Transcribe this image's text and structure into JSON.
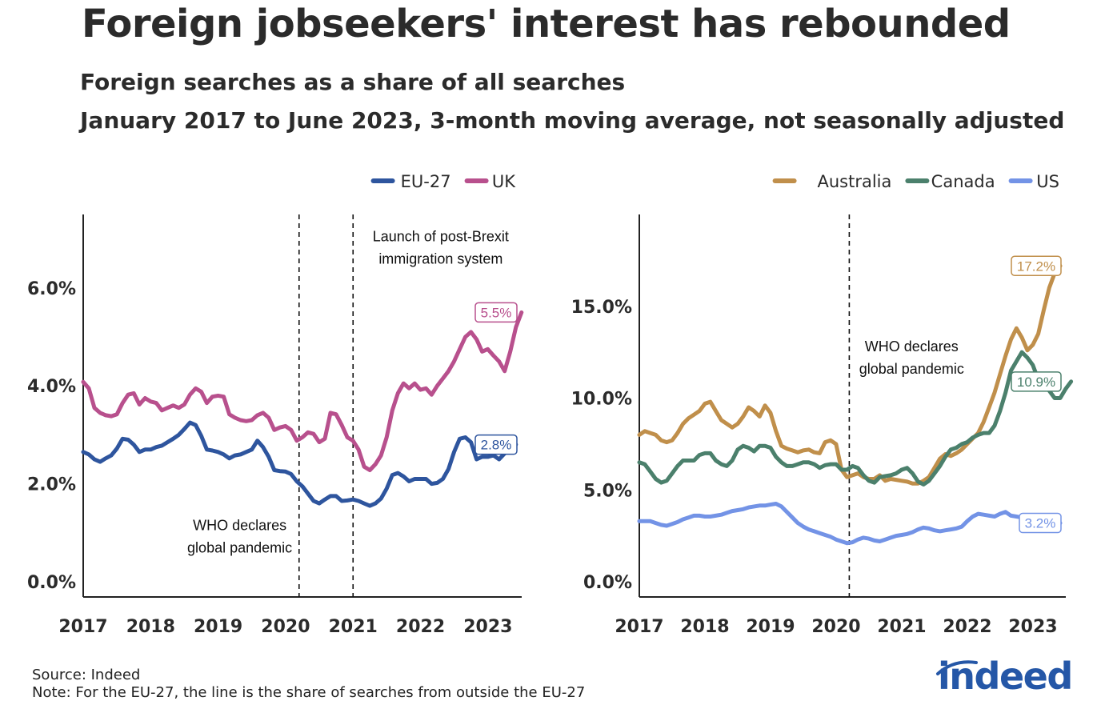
{
  "title": "Foreign jobseekers' interest has rebounded",
  "subtitle_1": "Foreign searches as a share of all searches",
  "subtitle_2": "January 2017 to June 2023, 3-month moving average, not seasonally adjusted",
  "footer": {
    "source": "Source: Indeed",
    "note": "Note: For the EU-27, the line is the share of searches from outside the EU-27"
  },
  "logo_text": "indeed",
  "chart_data": [
    {
      "type": "line",
      "legend_position": "top-right",
      "x_range": [
        2017.0,
        2023.5
      ],
      "ylim": [
        0,
        7.5
      ],
      "y_ticks": [
        0,
        2,
        4,
        6
      ],
      "y_tick_labels": [
        "0.0%",
        "2.0%",
        "4.0%",
        "6.0%"
      ],
      "x_ticks": [
        2017,
        2018,
        2019,
        2020,
        2021,
        2022,
        2023
      ],
      "x_tick_labels": [
        "2017",
        "2018",
        "2019",
        "2020",
        "2021",
        "2022",
        "2023"
      ],
      "vlines": [
        2020.2,
        2021.0
      ],
      "annotations": [
        {
          "lines": [
            "WHO declares",
            "global pandemic"
          ],
          "x": 2019.32,
          "y": 1.05,
          "anchor": "middle"
        },
        {
          "lines": [
            "Launch of post-Brexit",
            "immigration system"
          ],
          "x": 2022.3,
          "y": 6.95,
          "anchor": "middle"
        }
      ],
      "series": [
        {
          "name": "EU-27",
          "color": "#2e559e",
          "end_label": "2.8%",
          "x_start": 2017.0,
          "step": 0.0833,
          "values": [
            2.65,
            2.6,
            2.5,
            2.45,
            2.52,
            2.58,
            2.72,
            2.92,
            2.9,
            2.8,
            2.65,
            2.7,
            2.7,
            2.75,
            2.78,
            2.85,
            2.92,
            3.0,
            3.12,
            3.25,
            3.2,
            2.98,
            2.7,
            2.68,
            2.65,
            2.6,
            2.52,
            2.58,
            2.6,
            2.65,
            2.7,
            2.88,
            2.75,
            2.55,
            2.28,
            2.26,
            2.25,
            2.2,
            2.05,
            1.95,
            1.8,
            1.65,
            1.6,
            1.68,
            1.75,
            1.75,
            1.65,
            1.66,
            1.68,
            1.65,
            1.6,
            1.55,
            1.6,
            1.7,
            1.9,
            2.18,
            2.22,
            2.15,
            2.05,
            2.1,
            2.1,
            2.1,
            2.0,
            2.02,
            2.1,
            2.3,
            2.65,
            2.92,
            2.95,
            2.85,
            2.5,
            2.55,
            2.55,
            2.58,
            2.5,
            2.62,
            2.72,
            2.8
          ]
        },
        {
          "name": "UK",
          "color": "#b8508d",
          "end_label": "5.5%",
          "x_start": 2017.0,
          "step": 0.0833,
          "values": [
            4.08,
            3.95,
            3.55,
            3.45,
            3.4,
            3.38,
            3.42,
            3.65,
            3.82,
            3.85,
            3.62,
            3.75,
            3.68,
            3.65,
            3.5,
            3.55,
            3.6,
            3.55,
            3.62,
            3.82,
            3.95,
            3.88,
            3.65,
            3.78,
            3.8,
            3.78,
            3.42,
            3.35,
            3.3,
            3.28,
            3.3,
            3.4,
            3.45,
            3.35,
            3.1,
            3.15,
            3.18,
            3.1,
            2.88,
            2.95,
            3.05,
            3.02,
            2.85,
            2.92,
            3.45,
            3.42,
            3.2,
            2.95,
            2.88,
            2.7,
            2.35,
            2.28,
            2.4,
            2.58,
            2.95,
            3.5,
            3.85,
            4.05,
            3.95,
            4.05,
            3.92,
            3.95,
            3.82,
            4.0,
            4.15,
            4.3,
            4.5,
            4.75,
            5.0,
            5.1,
            4.95,
            4.7,
            4.75,
            4.62,
            4.5,
            4.3,
            4.7,
            5.2,
            5.5
          ]
        }
      ]
    },
    {
      "type": "line",
      "legend_position": "top-right",
      "x_range": [
        2017.0,
        2023.5
      ],
      "ylim": [
        0,
        20
      ],
      "y_ticks": [
        0,
        5,
        10,
        15
      ],
      "y_tick_labels": [
        "0.0%",
        "5.0%",
        "10.0%",
        "15.0%"
      ],
      "x_ticks": [
        2017,
        2018,
        2019,
        2020,
        2021,
        2022,
        2023
      ],
      "x_tick_labels": [
        "2017",
        "2018",
        "2019",
        "2020",
        "2021",
        "2022",
        "2023"
      ],
      "vlines": [
        2020.2
      ],
      "annotations": [
        {
          "lines": [
            "WHO declares",
            "global pandemic"
          ],
          "x": 2021.15,
          "y": 12.55,
          "anchor": "middle"
        }
      ],
      "series": [
        {
          "name": "Australia",
          "color": "#c08f4b",
          "end_label": "17.2%",
          "x_start": 2017.0,
          "step": 0.0833,
          "values": [
            8.0,
            8.2,
            8.1,
            8.0,
            7.7,
            7.6,
            7.7,
            8.1,
            8.6,
            8.9,
            9.1,
            9.3,
            9.7,
            9.8,
            9.3,
            8.8,
            8.6,
            8.4,
            8.6,
            9.0,
            9.5,
            9.3,
            9.0,
            9.6,
            9.2,
            8.2,
            7.4,
            7.25,
            7.15,
            7.05,
            7.15,
            7.2,
            7.05,
            7.0,
            7.6,
            7.7,
            7.5,
            6.1,
            5.7,
            5.8,
            5.9,
            5.7,
            5.6,
            5.6,
            5.8,
            5.5,
            5.6,
            5.55,
            5.5,
            5.45,
            5.35,
            5.35,
            5.5,
            5.7,
            6.2,
            6.7,
            6.95,
            6.85,
            7.0,
            7.2,
            7.5,
            7.8,
            8.1,
            8.7,
            9.5,
            10.3,
            11.3,
            12.3,
            13.2,
            13.8,
            13.3,
            12.6,
            12.9,
            13.5,
            14.8,
            16.0,
            16.8,
            17.2
          ]
        },
        {
          "name": "Canada",
          "color": "#4b806c",
          "end_label": "10.9%",
          "x_start": 2017.0,
          "step": 0.0833,
          "values": [
            6.5,
            6.4,
            6.0,
            5.6,
            5.4,
            5.5,
            5.9,
            6.3,
            6.6,
            6.6,
            6.6,
            6.9,
            7.0,
            7.0,
            6.6,
            6.4,
            6.3,
            6.6,
            7.2,
            7.4,
            7.3,
            7.1,
            7.4,
            7.4,
            7.3,
            6.8,
            6.5,
            6.3,
            6.3,
            6.4,
            6.5,
            6.5,
            6.4,
            6.2,
            6.35,
            6.4,
            6.4,
            6.1,
            6.1,
            6.3,
            6.2,
            5.8,
            5.5,
            5.4,
            5.7,
            5.75,
            5.8,
            5.9,
            6.1,
            6.2,
            5.9,
            5.45,
            5.3,
            5.5,
            5.9,
            6.3,
            6.8,
            7.2,
            7.3,
            7.5,
            7.6,
            7.85,
            8.0,
            8.1,
            8.1,
            8.5,
            9.3,
            10.3,
            11.5,
            12.0,
            12.5,
            12.2,
            11.8,
            11.0,
            10.7,
            10.4,
            10.0,
            10.0,
            10.5,
            10.9
          ]
        },
        {
          "name": "US",
          "color": "#7393e6",
          "end_label": "3.2%",
          "x_start": 2017.0,
          "step": 0.0833,
          "values": [
            3.3,
            3.3,
            3.3,
            3.2,
            3.1,
            3.05,
            3.15,
            3.25,
            3.4,
            3.5,
            3.6,
            3.6,
            3.55,
            3.55,
            3.6,
            3.65,
            3.75,
            3.85,
            3.9,
            3.95,
            4.05,
            4.1,
            4.15,
            4.15,
            4.2,
            4.25,
            4.1,
            3.8,
            3.5,
            3.2,
            3.0,
            2.85,
            2.75,
            2.65,
            2.55,
            2.45,
            2.3,
            2.2,
            2.1,
            2.15,
            2.3,
            2.4,
            2.35,
            2.25,
            2.2,
            2.3,
            2.4,
            2.5,
            2.55,
            2.6,
            2.7,
            2.85,
            2.95,
            2.9,
            2.8,
            2.75,
            2.8,
            2.85,
            2.9,
            3.0,
            3.3,
            3.55,
            3.7,
            3.65,
            3.6,
            3.55,
            3.7,
            3.8,
            3.6,
            3.55,
            3.5,
            3.6,
            3.5,
            3.4,
            3.3,
            3.25,
            3.2,
            3.2
          ]
        }
      ]
    }
  ]
}
